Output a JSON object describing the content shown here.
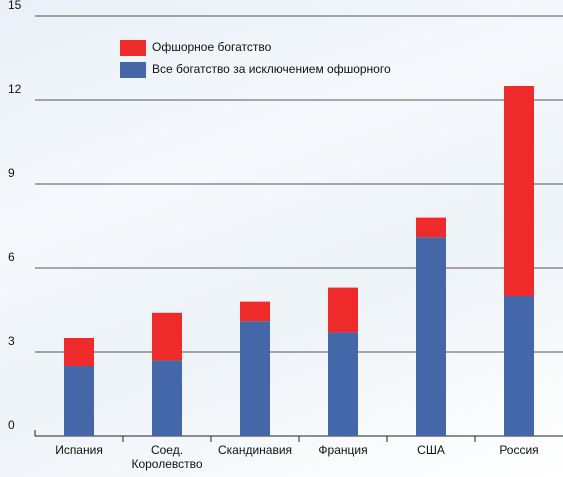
{
  "chart_data": {
    "type": "stacked_bar",
    "categories": [
      "Испания",
      "Соед. Королевство",
      "Скандинавия",
      "Франция",
      "США",
      "Россия"
    ],
    "series": [
      {
        "name": "Офшорное богатство",
        "color": "#ee2a2a",
        "values": [
          1.0,
          1.7,
          0.7,
          1.6,
          0.7,
          7.5
        ]
      },
      {
        "name": "Все богатство за исключением офшорного",
        "color": "#4467a9",
        "values": [
          2.5,
          2.7,
          4.1,
          3.7,
          7.1,
          5.0
        ]
      }
    ],
    "ylim": [
      0,
      15
    ],
    "yticks": [
      0,
      3,
      6,
      9,
      12,
      15
    ],
    "grid": true
  }
}
